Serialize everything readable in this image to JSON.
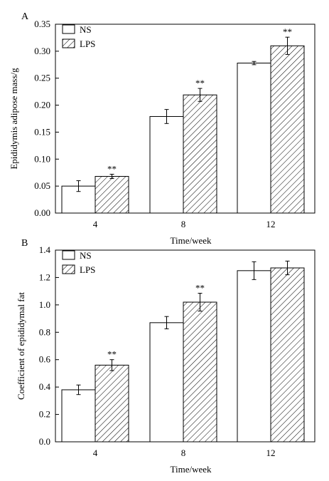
{
  "chart_data": [
    {
      "panel_label": "A",
      "type": "bar",
      "categories": [
        "4",
        "8",
        "12"
      ],
      "xlabel": "Time/week",
      "ylabel": "Epididymis adipose mass/g",
      "ylim": [
        0,
        0.35
      ],
      "yticks": [
        "0.00",
        "0.05",
        "0.10",
        "0.15",
        "0.20",
        "0.25",
        "0.30",
        "0.35"
      ],
      "legend_position": "top-left",
      "series": [
        {
          "name": "NS",
          "pattern": "open",
          "values": [
            0.05,
            0.179,
            0.278
          ],
          "errors": [
            0.01,
            0.013,
            0.003
          ]
        },
        {
          "name": "LPS",
          "pattern": "hatched",
          "values": [
            0.068,
            0.219,
            0.31
          ],
          "errors": [
            0.004,
            0.012,
            0.016
          ]
        }
      ],
      "annotations": [
        {
          "category": "4",
          "series": "LPS",
          "text": "**"
        },
        {
          "category": "8",
          "series": "LPS",
          "text": "**"
        },
        {
          "category": "12",
          "series": "LPS",
          "text": "**"
        }
      ]
    },
    {
      "panel_label": "B",
      "type": "bar",
      "categories": [
        "4",
        "8",
        "12"
      ],
      "xlabel": "Time/week",
      "ylabel": "Coefficient of epididymal fat",
      "ylim": [
        0,
        1.4
      ],
      "yticks": [
        "0.0",
        "0.2",
        "0.4",
        "0.6",
        "0.8",
        "1.0",
        "1.2",
        "1.4"
      ],
      "legend_position": "top-left",
      "series": [
        {
          "name": "NS",
          "pattern": "open",
          "values": [
            0.38,
            0.87,
            1.25
          ],
          "errors": [
            0.035,
            0.045,
            0.065
          ]
        },
        {
          "name": "LPS",
          "pattern": "hatched",
          "values": [
            0.56,
            1.02,
            1.27
          ],
          "errors": [
            0.04,
            0.065,
            0.05
          ]
        }
      ],
      "annotations": [
        {
          "category": "4",
          "series": "LPS",
          "text": "**"
        },
        {
          "category": "8",
          "series": "LPS",
          "text": "**"
        }
      ]
    }
  ]
}
